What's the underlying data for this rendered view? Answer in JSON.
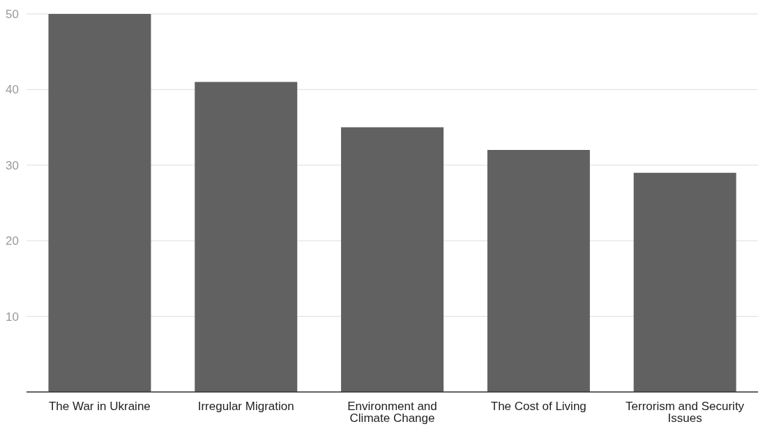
{
  "chart_data": {
    "type": "bar",
    "categories": [
      "The War in Ukraine",
      "Irregular Migration",
      "Environment and Climate Change",
      "The Cost of Living",
      "Terrorism and Security Issues"
    ],
    "values": [
      50,
      41,
      35,
      32,
      29
    ],
    "color": "#616161",
    "ylim": [
      0,
      50
    ],
    "yticks": [
      10,
      20,
      30,
      40,
      50
    ],
    "grid": "y"
  }
}
